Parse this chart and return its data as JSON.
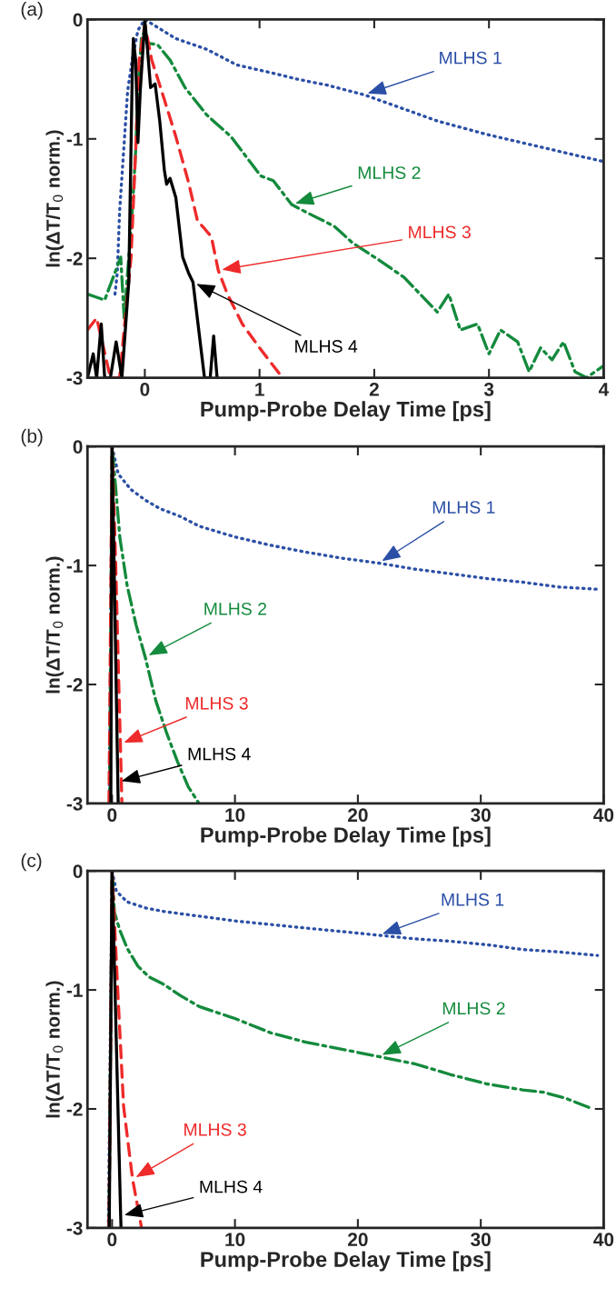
{
  "chart_data": [
    {
      "type": "line",
      "xlabel": "Pump-Probe Delay Time [ps]",
      "ylabel": "ln(ΔT/T$_{0}$ norm.)",
      "xlim": [
        -0.5,
        4
      ],
      "ylim": [
        -3,
        0
      ],
      "xticks": [
        0,
        1,
        2,
        3,
        4
      ],
      "yticks": [
        -3,
        -2,
        -1,
        0
      ],
      "grid": false,
      "legend": false,
      "series": [
        {
          "name": "MLHS 1",
          "color": "#2b4fa6",
          "line_style": "dotted",
          "x": [
            -0.26,
            -0.24,
            -0.22,
            -0.15,
            -0.11,
            -0.06,
            0,
            0.27,
            0.54,
            0.8,
            1.12,
            1.33,
            1.59,
            1.91,
            2.23,
            2.55,
            2.97,
            3.37,
            3.77,
            4.0
          ],
          "values": [
            -2.3,
            -2.12,
            -1.61,
            -0.6,
            -0.34,
            -0.09,
            0,
            -0.16,
            -0.25,
            -0.38,
            -0.45,
            -0.5,
            -0.55,
            -0.63,
            -0.74,
            -0.85,
            -0.96,
            -1.05,
            -1.14,
            -1.19
          ]
        },
        {
          "name": "MLHS 2",
          "color": "#138a3c",
          "line_style": "dashdot",
          "x": [
            -0.5,
            -0.35,
            -0.21,
            -0.18,
            -0.11,
            -0.08,
            -0.06,
            -0.03,
            0,
            0.03,
            0.11,
            0.22,
            0.35,
            0.54,
            0.75,
            1.01,
            1.12,
            1.28,
            1.46,
            1.65,
            1.81,
            2.05,
            2.26,
            2.4,
            2.55,
            2.65,
            2.75,
            2.9,
            3.0,
            3.1,
            3.25,
            3.35,
            3.45,
            3.55,
            3.65,
            3.75,
            3.85,
            4.0
          ],
          "values": [
            -2.3,
            -2.35,
            -1.99,
            -2.5,
            -1.61,
            -1.1,
            -0.6,
            -0.16,
            -0.09,
            -0.2,
            -0.21,
            -0.34,
            -0.57,
            -0.8,
            -0.98,
            -1.31,
            -1.35,
            -1.55,
            -1.64,
            -1.73,
            -1.87,
            -2.02,
            -2.16,
            -2.3,
            -2.45,
            -2.3,
            -2.6,
            -2.55,
            -2.8,
            -2.6,
            -2.7,
            -2.95,
            -2.75,
            -2.85,
            -2.7,
            -2.95,
            -3.0,
            -2.9
          ]
        },
        {
          "name": "MLHS 3",
          "color": "#ee2a2a",
          "line_style": "dashed",
          "x": [
            -0.5,
            -0.42,
            -0.3,
            -0.22,
            -0.12,
            -0.08,
            -0.05,
            0,
            0.06,
            0.17,
            0.27,
            0.38,
            0.46,
            0.51,
            0.58,
            0.64,
            0.72,
            0.85,
            1.0,
            1.2
          ],
          "values": [
            -2.6,
            -2.5,
            -3.0,
            -3.0,
            -1.99,
            -1.1,
            -0.34,
            -0.04,
            -0.34,
            -0.67,
            -0.98,
            -1.36,
            -1.69,
            -1.74,
            -1.82,
            -2.1,
            -2.3,
            -2.55,
            -2.75,
            -3.0
          ]
        },
        {
          "name": "MLHS 4",
          "color": "#000000",
          "line_style": "solid",
          "x": [
            -0.5,
            -0.45,
            -0.42,
            -0.38,
            -0.35,
            -0.3,
            -0.25,
            -0.2,
            -0.14,
            -0.11,
            -0.1,
            -0.08,
            -0.06,
            -0.04,
            0,
            0.02,
            0.05,
            0.09,
            0.13,
            0.17,
            0.19,
            0.22,
            0.27,
            0.33,
            0.38,
            0.42,
            0.52,
            0.57,
            0.6,
            0.63
          ],
          "values": [
            -3.0,
            -2.8,
            -3.0,
            -2.55,
            -3.0,
            -3.0,
            -2.7,
            -3.0,
            -2.2,
            -0.47,
            -0.16,
            -0.34,
            -1.03,
            -0.6,
            -0.01,
            -0.21,
            -0.57,
            -0.54,
            -0.85,
            -1.26,
            -1.38,
            -1.33,
            -1.49,
            -1.99,
            -2.12,
            -2.2,
            -3.0,
            -3.0,
            -2.65,
            -3.0
          ]
        }
      ],
      "annotations": [
        "(a)"
      ]
    },
    {
      "type": "line",
      "xlabel": "Pump-Probe Delay Time [ps]",
      "ylabel": "ln(ΔT/T$_{0}$ norm.)",
      "xlim": [
        -2,
        40
      ],
      "ylim": [
        -3,
        0
      ],
      "xticks": [
        0,
        10,
        20,
        30,
        40
      ],
      "yticks": [
        -3,
        -2,
        -1,
        0
      ],
      "grid": false,
      "legend": false,
      "series": [
        {
          "name": "MLHS 1",
          "color": "#2b4fa6",
          "line_style": "dotted",
          "x": [
            -0.23,
            -0.1,
            0,
            0.5,
            1.52,
            2.7,
            3.86,
            5.6,
            7.1,
            10,
            12.9,
            15.9,
            18.8,
            21.7,
            24.6,
            27.6,
            30.5,
            33.4,
            36.3,
            39.6
          ],
          "values": [
            -3.0,
            -1.5,
            0,
            -0.23,
            -0.36,
            -0.45,
            -0.52,
            -0.59,
            -0.67,
            -0.76,
            -0.83,
            -0.89,
            -0.94,
            -0.98,
            -1.03,
            -1.07,
            -1.11,
            -1.14,
            -1.18,
            -1.2
          ]
        },
        {
          "name": "MLHS 2",
          "color": "#138a3c",
          "line_style": "dashdot",
          "x": [
            -0.2,
            0,
            0.35,
            0.64,
            1.23,
            1.96,
            2.7,
            3.57,
            4.45,
            5.33,
            6.2,
            7.08
          ],
          "values": [
            -3.0,
            0,
            -0.41,
            -0.77,
            -1.17,
            -1.5,
            -1.77,
            -2.14,
            -2.41,
            -2.65,
            -2.86,
            -3.0
          ]
        },
        {
          "name": "MLHS 3",
          "color": "#ee2a2a",
          "line_style": "dashed",
          "x": [
            -0.25,
            0,
            0.3,
            0.55,
            0.68,
            0.8
          ],
          "values": [
            -3.0,
            0,
            -1.0,
            -2.0,
            -2.5,
            -3.0
          ]
        },
        {
          "name": "MLHS 4",
          "color": "#000000",
          "line_style": "solid",
          "x": [
            -0.1,
            0,
            0.25,
            0.47,
            0.5
          ],
          "values": [
            -3.0,
            0,
            -1.5,
            -2.82,
            -3.0
          ]
        }
      ],
      "annotations": [
        "(b)"
      ]
    },
    {
      "type": "line",
      "xlabel": "Pump-Probe Delay Time [ps]",
      "ylabel": "ln(ΔT/T$_{0}$ norm.)",
      "xlim": [
        -2,
        40
      ],
      "ylim": [
        -3,
        0
      ],
      "xticks": [
        0,
        10,
        20,
        30,
        40
      ],
      "yticks": [
        -3,
        -2,
        -1,
        0
      ],
      "grid": false,
      "legend": false,
      "series": [
        {
          "name": "MLHS 1",
          "color": "#2b4fa6",
          "line_style": "dotted",
          "x": [
            -0.3,
            -0.15,
            0,
            0.35,
            1.23,
            2.7,
            4.15,
            7.1,
            10,
            12.9,
            15.8,
            18.8,
            21.7,
            24.6,
            27.5,
            30.5,
            33.4,
            36.3,
            39.5
          ],
          "values": [
            -3.0,
            -1.5,
            0,
            -0.17,
            -0.26,
            -0.31,
            -0.34,
            -0.38,
            -0.42,
            -0.45,
            -0.48,
            -0.51,
            -0.54,
            -0.57,
            -0.59,
            -0.62,
            -0.66,
            -0.68,
            -0.71
          ]
        },
        {
          "name": "MLHS 2",
          "color": "#138a3c",
          "line_style": "dashdot",
          "x": [
            -0.25,
            0,
            0.2,
            0.64,
            1.23,
            2.1,
            3.0,
            4.15,
            5.6,
            7.1,
            10,
            12.9,
            15.8,
            18.8,
            21.7,
            24.6,
            27.5,
            30.5,
            33.4,
            35.1,
            36.9,
            39.1
          ],
          "values": [
            -3.0,
            0,
            -0.35,
            -0.5,
            -0.65,
            -0.8,
            -0.89,
            -0.95,
            -1.05,
            -1.14,
            -1.24,
            -1.36,
            -1.44,
            -1.5,
            -1.56,
            -1.62,
            -1.71,
            -1.79,
            -1.84,
            -1.86,
            -1.91,
            -2.0
          ]
        },
        {
          "name": "MLHS 3",
          "color": "#ee2a2a",
          "line_style": "dashed",
          "x": [
            -0.25,
            0,
            0.5,
            0.94,
            1.67,
            2.4
          ],
          "values": [
            -3.0,
            0,
            -1.08,
            -1.98,
            -2.59,
            -3.0
          ]
        },
        {
          "name": "MLHS 4",
          "color": "#000000",
          "line_style": "solid",
          "x": [
            -0.23,
            0,
            0.7,
            0.73
          ],
          "values": [
            -3.0,
            0,
            -2.9,
            -3.0
          ]
        }
      ],
      "annotations": [
        "(c)"
      ]
    }
  ]
}
